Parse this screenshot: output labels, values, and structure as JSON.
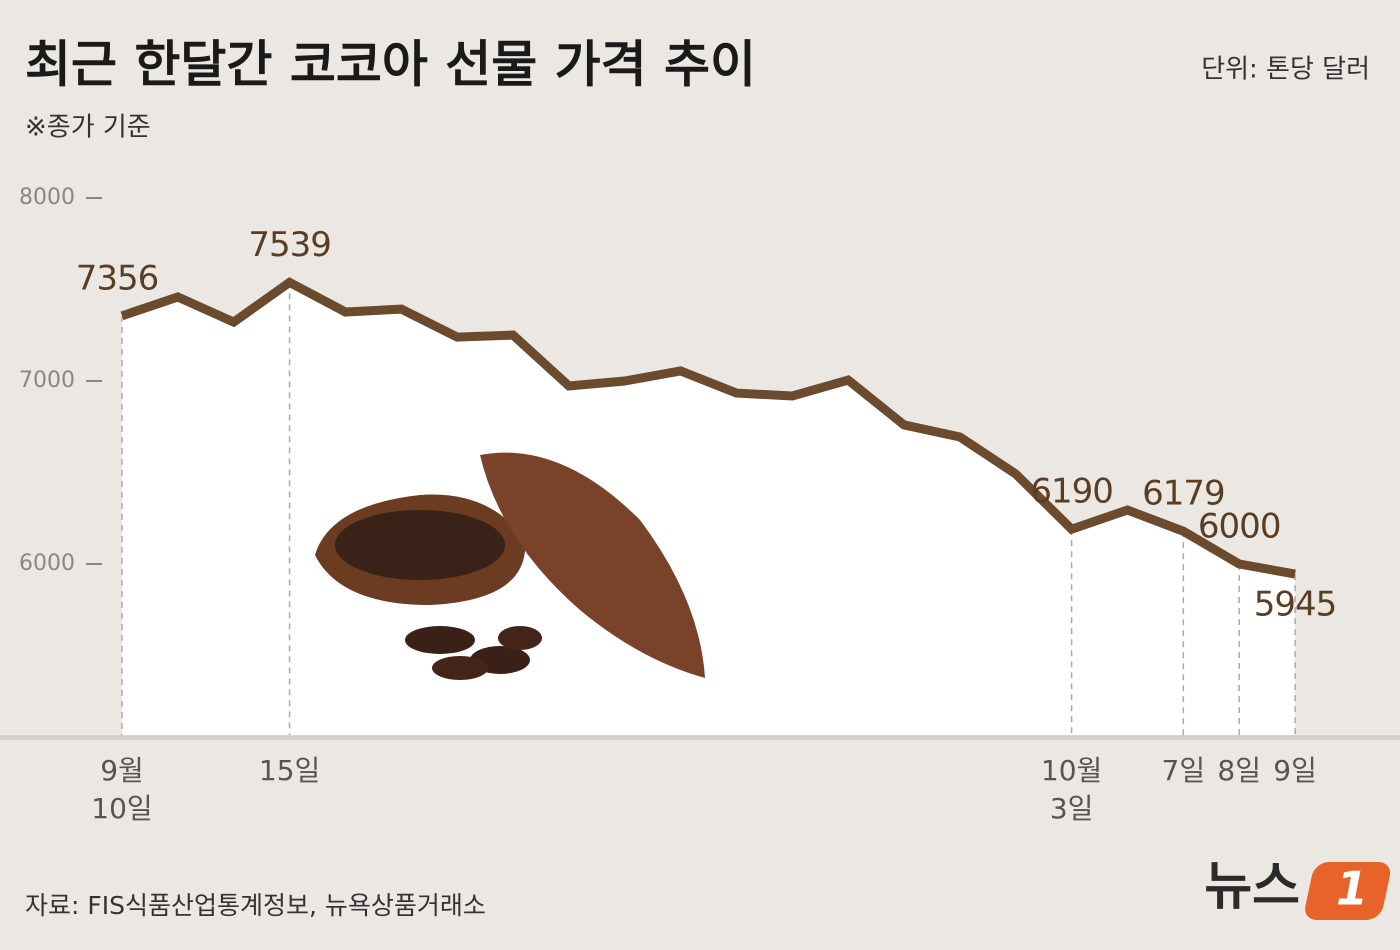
{
  "chart_data": {
    "type": "line",
    "title": "최근 한달간 코코아 선물 가격 추이",
    "subtitle": "※종가 기준",
    "unit": "단위: 톤당 달러",
    "source": "자료: FIS식품산업통계정보, 뉴욕상품거래소",
    "brand": "뉴스",
    "brand_mark": "1",
    "categories": [
      "9월\n10일",
      null,
      null,
      "15일",
      null,
      null,
      null,
      null,
      null,
      null,
      null,
      null,
      null,
      null,
      null,
      null,
      null,
      "10월\n3일",
      null,
      "7일",
      "8일",
      "9일"
    ],
    "values": [
      7356,
      7459,
      7322,
      7539,
      7377,
      7393,
      7240,
      7251,
      6973,
      7000,
      7055,
      6934,
      6918,
      7005,
      6760,
      6694,
      6492,
      6190,
      6295,
      6179,
      6000,
      5945
    ],
    "value_labels": [
      "7356",
      null,
      null,
      "7539",
      null,
      null,
      null,
      null,
      null,
      null,
      null,
      null,
      null,
      null,
      null,
      null,
      null,
      "6190",
      null,
      "6179",
      "6000",
      "5945"
    ],
    "color": "#6b4a2e",
    "ylim": [
      5065,
      8000
    ],
    "yticks": [
      6000,
      7000,
      8000
    ]
  }
}
